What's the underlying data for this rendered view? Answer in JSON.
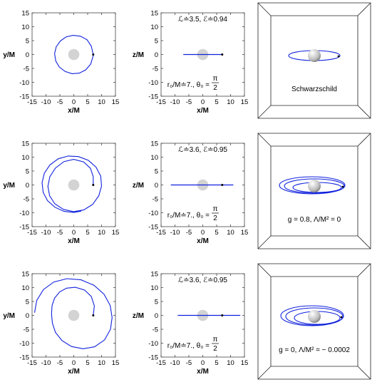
{
  "tick_labels": [
    "-15",
    "-10",
    "-5",
    "0",
    "5",
    "10",
    "15"
  ],
  "rows": [
    {
      "xy": {
        "xlabel": "x/M",
        "ylabel": "y/M",
        "xlim": [
          -15,
          15
        ],
        "ylim": [
          -15,
          15
        ]
      },
      "xz": {
        "xlabel": "x/M",
        "ylabel": "z/M",
        "xlim": [
          -15,
          15
        ],
        "ylim": [
          -15,
          15
        ]
      },
      "annotation_top": "ℒ≐3.5, ℰ≐0.94",
      "annotation_bottom_prefix": "r₀/M≐7., θ₀ =",
      "annotation_frac_num": "π",
      "annotation_frac_den": "2",
      "box_label": "Schwarzschild"
    },
    {
      "xy": {
        "xlabel": "x/M",
        "ylabel": "y/M",
        "xlim": [
          -15,
          15
        ],
        "ylim": [
          -15,
          15
        ]
      },
      "xz": {
        "xlabel": "x/M",
        "ylabel": "z/M",
        "xlim": [
          -15,
          15
        ],
        "ylim": [
          -15,
          15
        ]
      },
      "annotation_top": "ℒ≐3.6, ℰ≐0.95",
      "annotation_bottom_prefix": "r₀/M≐7., θ₀ =",
      "annotation_frac_num": "π",
      "annotation_frac_den": "2",
      "box_label": "g = 0.8, Λ/M² = 0"
    },
    {
      "xy": {
        "xlabel": "x/M",
        "ylabel": "y/M",
        "xlim": [
          -15,
          15
        ],
        "ylim": [
          -15,
          15
        ]
      },
      "xz": {
        "xlabel": "x/M",
        "ylabel": "z/M",
        "xlim": [
          -15,
          15
        ],
        "ylim": [
          -15,
          15
        ]
      },
      "annotation_top": "ℒ≐3.6, ℰ≐0.95",
      "annotation_bottom_prefix": "r₀/M≐7., θ₀ =",
      "annotation_frac_num": "π",
      "annotation_frac_den": "2",
      "box_label": "g = 0, Λ/M² = − 0.0002"
    }
  ],
  "chart_data": {
    "type": "line",
    "panels": "3 rows × (x–y orbit, x–z orbit, 3D view)",
    "xlim": [
      -15,
      15
    ],
    "ylim": [
      -15,
      15
    ],
    "orbits": [
      {
        "start": [
          7,
          0
        ],
        "xy_points": [
          [
            7,
            0
          ],
          [
            6.3,
            3
          ],
          [
            4.8,
            5.3
          ],
          [
            2.4,
            6.6
          ],
          [
            -0.3,
            6.9
          ],
          [
            -2.8,
            6.3
          ],
          [
            -4.8,
            4.9
          ],
          [
            -6.3,
            2.8
          ],
          [
            -6.9,
            0.3
          ],
          [
            -6.5,
            -2.3
          ],
          [
            -5.2,
            -4.5
          ],
          [
            -3.1,
            -6.1
          ],
          [
            -0.6,
            -6.9
          ],
          [
            2,
            -6.7
          ],
          [
            4.3,
            -5.5
          ],
          [
            6.1,
            -3.4
          ],
          [
            6.9,
            -0.8
          ],
          [
            7,
            0
          ]
        ],
        "xz_x_range": [
          -7,
          7
        ],
        "mass_radius": 2
      },
      {
        "start": [
          7,
          0
        ],
        "xy_points": [
          [
            7,
            0
          ],
          [
            7,
            3
          ],
          [
            6,
            6
          ],
          [
            3.5,
            8.3
          ],
          [
            0,
            9.2
          ],
          [
            -3.5,
            8.4
          ],
          [
            -6.6,
            6.1
          ],
          [
            -8.6,
            3
          ],
          [
            -9.3,
            -0.5
          ],
          [
            -8.7,
            -3.9
          ],
          [
            -6.8,
            -6.8
          ],
          [
            -3.7,
            -8.8
          ],
          [
            -0.1,
            -9.6
          ],
          [
            3.6,
            -9
          ],
          [
            6.8,
            -7
          ],
          [
            9,
            -3.9
          ],
          [
            10,
            -0.4
          ],
          [
            9.7,
            3.2
          ],
          [
            8,
            6.4
          ],
          [
            5.2,
            8.9
          ],
          [
            1.7,
            10.2
          ],
          [
            -2,
            10.4
          ],
          [
            -5.6,
            9.4
          ],
          [
            -8.6,
            7.2
          ],
          [
            -10.6,
            4.2
          ],
          [
            -11.4,
            0.8
          ],
          [
            -11,
            -2.7
          ],
          [
            -9.4,
            -5.7
          ],
          [
            -6.8,
            -8
          ],
          [
            -3.5,
            -9.5
          ],
          [
            0.1,
            -9.9
          ],
          [
            2.7,
            -9.4
          ]
        ],
        "xz_x_range": [
          -11.5,
          11
        ]
      },
      {
        "start": [
          7,
          0
        ],
        "xy_points": [
          [
            7,
            0
          ],
          [
            7.4,
            3.4
          ],
          [
            6.3,
            6.8
          ],
          [
            3.9,
            9.1
          ],
          [
            0.6,
            10.1
          ],
          [
            -2.6,
            9.8
          ],
          [
            -5.1,
            8.4
          ],
          [
            -6.9,
            6.2
          ],
          [
            -7.8,
            3.6
          ],
          [
            -8,
            0.5
          ],
          [
            -7.7,
            -2.8
          ],
          [
            -6.6,
            -6.1
          ],
          [
            -4.2,
            -9.1
          ],
          [
            -0.8,
            -11.2
          ],
          [
            3.3,
            -12
          ],
          [
            7.5,
            -11.3
          ],
          [
            11.1,
            -8.8
          ],
          [
            13.2,
            -5
          ],
          [
            13.8,
            -0.8
          ],
          [
            13.1,
            3.6
          ],
          [
            10.9,
            7.6
          ],
          [
            7.3,
            10.8
          ],
          [
            2.6,
            12.8
          ],
          [
            -2.5,
            13.2
          ],
          [
            -7.2,
            12
          ],
          [
            -10.9,
            9.3
          ],
          [
            -13.3,
            5.4
          ],
          [
            -14.1,
            1
          ]
        ],
        "xz_x_range": [
          -9,
          13.5
        ]
      }
    ]
  }
}
